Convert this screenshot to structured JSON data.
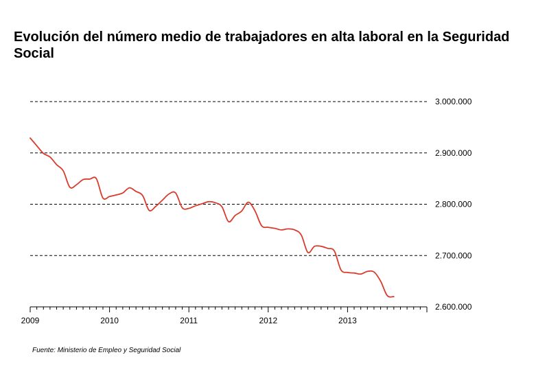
{
  "chart_data": {
    "type": "line",
    "title": "Evolución del número medio de trabajadores en alta laboral en la Seguridad Social",
    "xlabel": "",
    "ylabel": "",
    "source": "Fuente: Ministerio de Empleo y Seguridad Social",
    "x_ticks": [
      "2009",
      "2010",
      "2011",
      "2012",
      "2013"
    ],
    "x_tick_values": [
      2009,
      2010,
      2011,
      2012,
      2013
    ],
    "xlim": [
      2009,
      2014
    ],
    "ylim": [
      2600000,
      3000000
    ],
    "y_ticks": [
      {
        "value": 2600000,
        "label": "2.600.000"
      },
      {
        "value": 2700000,
        "label": "2.700.000"
      },
      {
        "value": 2800000,
        "label": "2.800.000"
      },
      {
        "value": 2900000,
        "label": "2.900.000"
      },
      {
        "value": 3000000,
        "label": "3.000.000"
      }
    ],
    "grid": "horizontal dashed",
    "series": [
      {
        "color": "#d93a2b",
        "x": [
          2009.0,
          2009.083,
          2009.167,
          2009.25,
          2009.333,
          2009.417,
          2009.5,
          2009.583,
          2009.667,
          2009.75,
          2009.833,
          2009.917,
          2010.0,
          2010.083,
          2010.167,
          2010.25,
          2010.333,
          2010.417,
          2010.5,
          2010.583,
          2010.667,
          2010.75,
          2010.833,
          2010.917,
          2011.0,
          2011.083,
          2011.167,
          2011.25,
          2011.333,
          2011.417,
          2011.5,
          2011.583,
          2011.667,
          2011.75,
          2011.833,
          2011.917,
          2012.0,
          2012.083,
          2012.167,
          2012.25,
          2012.333,
          2012.417,
          2012.5,
          2012.583,
          2012.667,
          2012.75,
          2012.833,
          2012.917,
          2013.0,
          2013.083,
          2013.167,
          2013.25,
          2013.333,
          2013.417,
          2013.5,
          2013.583
        ],
        "values": [
          2929000,
          2914000,
          2899000,
          2892000,
          2877000,
          2865000,
          2833000,
          2838000,
          2848000,
          2849000,
          2850000,
          2812000,
          2815000,
          2818000,
          2822000,
          2832000,
          2825000,
          2817000,
          2788000,
          2796000,
          2808000,
          2820000,
          2822000,
          2793000,
          2792000,
          2797000,
          2801000,
          2805000,
          2803000,
          2795000,
          2766000,
          2778000,
          2787000,
          2804000,
          2787000,
          2758000,
          2755000,
          2753000,
          2750000,
          2752000,
          2750000,
          2740000,
          2706000,
          2718000,
          2718000,
          2714000,
          2709000,
          2672000,
          2667000,
          2666000,
          2664000,
          2669000,
          2668000,
          2650000,
          2622000,
          2620000
        ]
      }
    ]
  }
}
